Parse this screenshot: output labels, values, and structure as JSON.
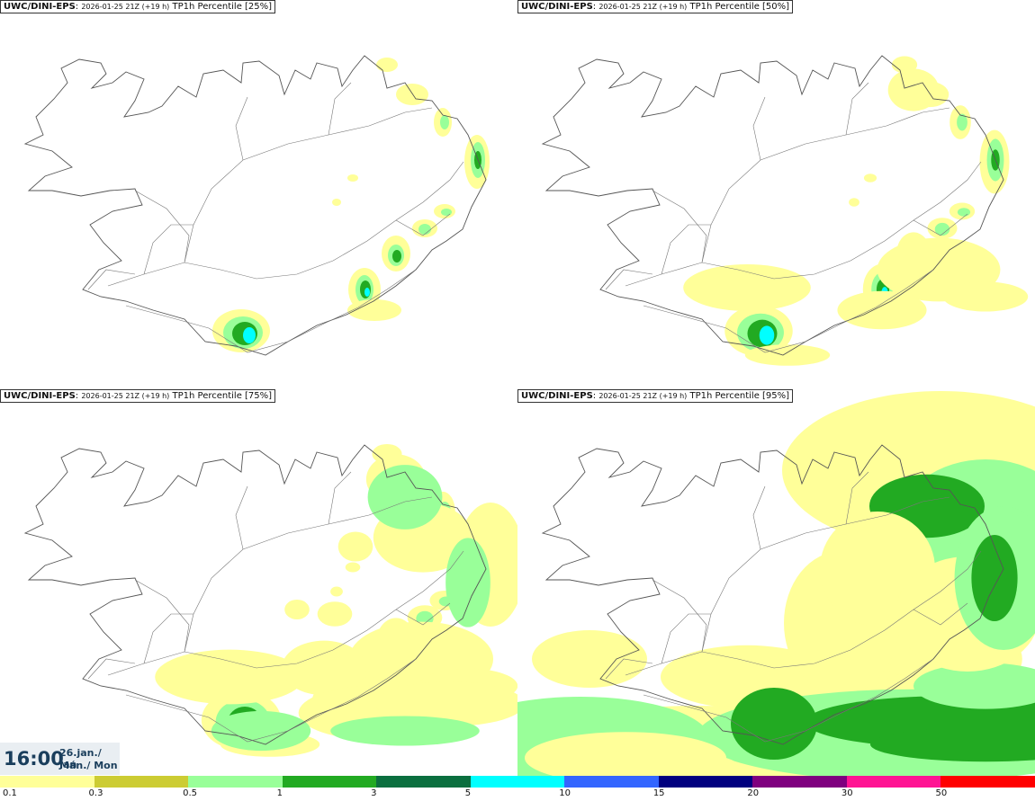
{
  "panels": [
    {
      "model": "UWC/DINI-EPS",
      "run": "2026-01-25 21Z (+19 h)",
      "product": "TP1h Percentile [25%]",
      "level": 0
    },
    {
      "model": "UWC/DINI-EPS",
      "run": "2026-01-25 21Z (+19 h)",
      "product": "TP1h Percentile [50%]",
      "level": 1
    },
    {
      "model": "UWC/DINI-EPS",
      "run": "2026-01-25 21Z (+19 h)",
      "product": "TP1h Percentile [75%]",
      "level": 2
    },
    {
      "model": "UWC/DINI-EPS",
      "run": "2026-01-25 21Z (+19 h)",
      "product": "TP1h Percentile [95%]",
      "level": 3
    }
  ],
  "valid_time": {
    "hour": "16:00",
    "date": "26.jan./ Jan",
    "day": "Mán./ Mon"
  },
  "legend": {
    "ticks": [
      "0.1",
      "0.3",
      "0.5",
      "1",
      "3",
      "5",
      "10",
      "15",
      "20",
      "30",
      "50"
    ],
    "colors": [
      "#ffff99",
      "#cccc33",
      "#99ff99",
      "#22aa22",
      "#0b6f3f",
      "#00ffff",
      "#3366ff",
      "#00007f",
      "#7f007f",
      "#ff1493",
      "#ff0000"
    ]
  }
}
